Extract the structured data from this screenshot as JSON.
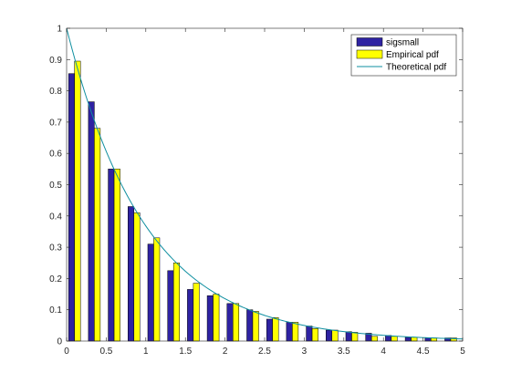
{
  "chart_data": {
    "type": "bar",
    "xlim": [
      0,
      5
    ],
    "ylim": [
      0,
      1
    ],
    "xticks": [
      "0",
      "0.5",
      "1",
      "1.5",
      "2",
      "2.5",
      "3",
      "3.5",
      "4",
      "4.5",
      "5"
    ],
    "yticks": [
      "0",
      "0.1",
      "0.2",
      "0.3",
      "0.4",
      "0.5",
      "0.6",
      "0.7",
      "0.8",
      "0.9",
      "1"
    ],
    "legend_position": "top-right",
    "grid": false,
    "x": [
      0.1,
      0.35,
      0.6,
      0.85,
      1.1,
      1.35,
      1.6,
      1.85,
      2.1,
      2.35,
      2.6,
      2.85,
      3.1,
      3.35,
      3.6,
      3.85,
      4.1,
      4.35,
      4.6,
      4.85
    ],
    "series": [
      {
        "name": "sigsmall",
        "kind": "bar",
        "color": "#2e22a2",
        "values": [
          0.855,
          0.765,
          0.55,
          0.43,
          0.31,
          0.225,
          0.165,
          0.145,
          0.12,
          0.1,
          0.07,
          0.06,
          0.048,
          0.035,
          0.03,
          0.025,
          0.018,
          0.012,
          0.01,
          0.01
        ]
      },
      {
        "name": "Empirical pdf",
        "kind": "bar",
        "color": "#ffff00",
        "values": [
          0.895,
          0.68,
          0.55,
          0.41,
          0.33,
          0.25,
          0.185,
          0.15,
          0.12,
          0.095,
          0.075,
          0.06,
          0.04,
          0.035,
          0.028,
          0.015,
          0.015,
          0.012,
          0.01,
          0.01
        ]
      },
      {
        "name": "Theoretical pdf",
        "kind": "line",
        "color": "#0f8fa0",
        "formula": "exp(-x)"
      }
    ]
  }
}
